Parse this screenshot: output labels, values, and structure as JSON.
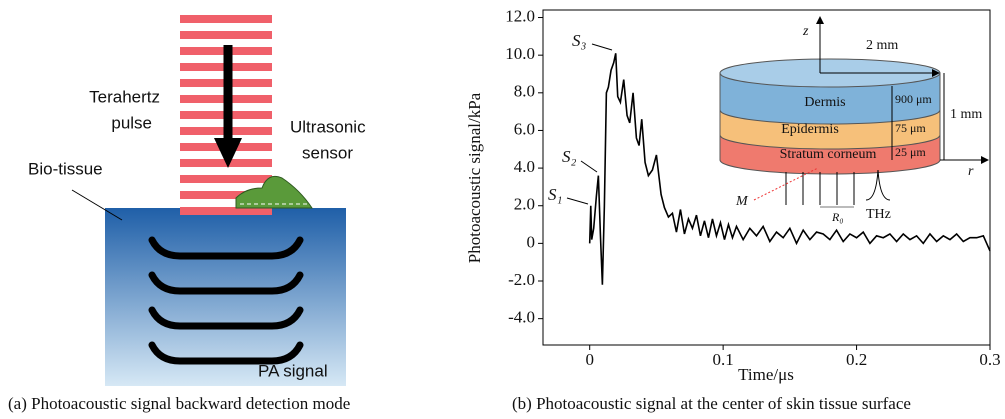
{
  "diagram": {
    "pulse_label": [
      "Terahertz",
      "pulse"
    ],
    "sensor_label": [
      "Ultrasonic",
      "sensor"
    ],
    "tissue_label": "Bio-tissue",
    "signal_label": "PA signal",
    "caption": "(a) Photoacoustic signal backward detection mode"
  },
  "chart_data": {
    "type": "line",
    "caption": "(b) Photoacoustic signal at the center of skin tissue surface",
    "x_label": "Time/μs",
    "y_label": "Photoacoustic signal/kPa",
    "xlim": [
      -0.035,
      0.3
    ],
    "xticks": [
      0,
      0.1,
      0.2,
      0.3
    ],
    "ylim": [
      -5.4,
      12.4
    ],
    "yticks": [
      {
        "value": -4,
        "label": "-4.0"
      },
      {
        "value": -2,
        "label": "-2.0"
      },
      {
        "value": 0,
        "label": "0"
      },
      {
        "value": 2,
        "label": "2.0"
      },
      {
        "value": 4,
        "label": "4.0"
      },
      {
        "value": 6,
        "label": "6.0"
      },
      {
        "value": 8,
        "label": "8.0"
      },
      {
        "value": 10,
        "label": "10.0"
      },
      {
        "value": 12,
        "label": "12.0"
      }
    ],
    "color": "#000000",
    "x": [
      0,
      0.0008,
      0.0015,
      0.003,
      0.005,
      0.0065,
      0.008,
      0.0095,
      0.011,
      0.0125,
      0.014,
      0.016,
      0.018,
      0.0195,
      0.021,
      0.023,
      0.0255,
      0.028,
      0.03,
      0.0325,
      0.035,
      0.037,
      0.039,
      0.0415,
      0.044,
      0.047,
      0.05,
      0.0535,
      0.056,
      0.059,
      0.062,
      0.065,
      0.068,
      0.071,
      0.074,
      0.077,
      0.08,
      0.083,
      0.086,
      0.089,
      0.092,
      0.095,
      0.098,
      0.101,
      0.104,
      0.107,
      0.11,
      0.115,
      0.12,
      0.125,
      0.13,
      0.135,
      0.14,
      0.145,
      0.15,
      0.155,
      0.16,
      0.165,
      0.17,
      0.175,
      0.18,
      0.185,
      0.19,
      0.195,
      0.2,
      0.205,
      0.21,
      0.215,
      0.22,
      0.225,
      0.23,
      0.235,
      0.24,
      0.245,
      0.25,
      0.255,
      0.26,
      0.265,
      0.27,
      0.275,
      0.28,
      0.285,
      0.29,
      0.295,
      0.3
    ],
    "values": [
      0,
      2.0,
      0.2,
      0.8,
      2.5,
      3.6,
      0.5,
      -2.2,
      2.0,
      8.0,
      8.3,
      9.2,
      9.6,
      10.1,
      7.8,
      7.5,
      8.7,
      6.8,
      6.4,
      8.0,
      5.6,
      5.2,
      6.6,
      4.3,
      3.6,
      3.9,
      4.7,
      2.6,
      1.9,
      1.4,
      1.6,
      0.6,
      1.8,
      0.5,
      1.3,
      0.8,
      1.5,
      0.4,
      1.2,
      0.3,
      1.3,
      0.4,
      1.1,
      0.2,
      1.0,
      0.3,
      0.9,
      0.2,
      0.8,
      0.4,
      0.9,
      0.1,
      0.6,
      0.3,
      0.8,
      0.0,
      0.7,
      0.2,
      0.6,
      0.5,
      0.2,
      0.7,
      0.1,
      0.5,
      0.3,
      0.6,
      0.0,
      0.4,
      0.3,
      0.5,
      0.1,
      0.5,
      0.2,
      0.4,
      0.0,
      0.5,
      0.1,
      0.4,
      0.2,
      0.5,
      0.1,
      0.3,
      0.3,
      0.4,
      -0.4
    ],
    "annotations": [
      "S₁",
      "S₂",
      "S₃"
    ],
    "inset": {
      "z": "z",
      "radius": "2 mm",
      "dermis": "Dermis",
      "dermis_depth": "900 μm",
      "epidermis": "Epidermis",
      "epidermis_depth": "75 μm",
      "corneum": "Stratum corneum",
      "corneum_depth": "25 μm",
      "height": "1 mm",
      "r": "r",
      "m": "M",
      "r0": "R₀",
      "thz": "THz"
    }
  }
}
